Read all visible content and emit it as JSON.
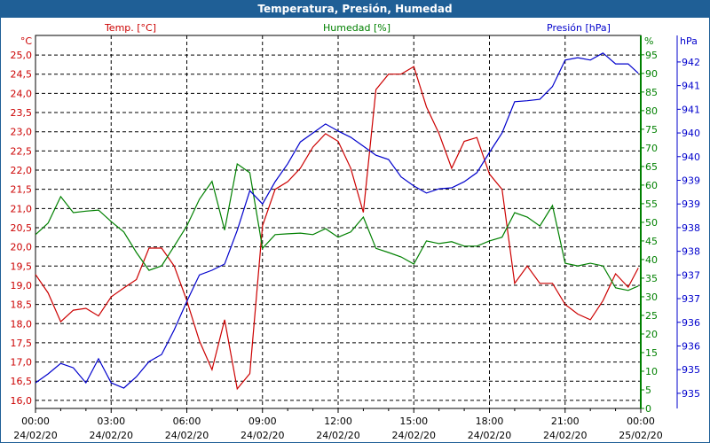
{
  "window_title": "Temperatura, Presión, Humedad",
  "colors": {
    "temp": "#cc0000",
    "humidity": "#008000",
    "pressure": "#0000cc",
    "titlebar": "#1f5f96"
  },
  "chart_data": {
    "type": "line",
    "title": "Temperatura, Presión, Humedad",
    "series_labels": {
      "temp": "Temp. [°C]",
      "humidity": "Humedad [%]",
      "pressure": "Presión [hPa]"
    },
    "axis_units": {
      "temp": "°C",
      "humidity": "%",
      "pressure": "hPa"
    },
    "x_range_hours": [
      0,
      24
    ],
    "x_ticks": [
      {
        "time": "00:00",
        "date": "24/02/20"
      },
      {
        "time": "03:00",
        "date": "24/02/20"
      },
      {
        "time": "06:00",
        "date": "24/02/20"
      },
      {
        "time": "09:00",
        "date": "24/02/20"
      },
      {
        "time": "12:00",
        "date": "24/02/20"
      },
      {
        "time": "15:00",
        "date": "24/02/20"
      },
      {
        "time": "18:00",
        "date": "24/02/20"
      },
      {
        "time": "21:00",
        "date": "24/02/20"
      },
      {
        "time": "00:00",
        "date": "25/02/20"
      }
    ],
    "temp_axis": {
      "range": [
        15.79,
        25.51
      ],
      "ticks": [
        16.0,
        16.5,
        17.0,
        17.5,
        18.0,
        18.5,
        19.0,
        19.5,
        20.0,
        20.5,
        21.0,
        21.5,
        22.0,
        22.5,
        23.0,
        23.5,
        24.0,
        24.5,
        25.0
      ],
      "tick_labels": [
        "16,0",
        "16,5",
        "17,0",
        "17,5",
        "18,0",
        "18,5",
        "19,0",
        "19,5",
        "20,0",
        "20,5",
        "21,0",
        "21,5",
        "22,0",
        "22,5",
        "23,0",
        "23,5",
        "24,0",
        "24,5",
        "25,0"
      ]
    },
    "humidity_axis": {
      "range": [
        0,
        100.2
      ],
      "ticks": [
        0,
        5,
        10,
        15,
        20,
        25,
        30,
        35,
        40,
        45,
        50,
        55,
        60,
        65,
        70,
        75,
        80,
        85,
        90,
        95
      ],
      "tick_labels": [
        "0",
        "5",
        "10",
        "15",
        "20",
        "25",
        "30",
        "35",
        "40",
        "45",
        "50",
        "55",
        "60",
        "65",
        "70",
        "75",
        "80",
        "85",
        "90",
        "95"
      ]
    },
    "pressure_axis": {
      "range": [
        934.68,
        942.56
      ],
      "ticks": [
        935.0,
        935.5,
        936.0,
        936.5,
        937.0,
        937.5,
        938.0,
        938.5,
        939.0,
        939.5,
        940.0,
        940.5,
        941.0,
        941.5,
        942.0
      ],
      "tick_labels": [
        "935",
        "935",
        "936",
        "936",
        "937",
        "937",
        "938",
        "938",
        "939",
        "939",
        "940",
        "940",
        "941",
        "941",
        "942"
      ]
    },
    "x_hours": [
      0,
      0.5,
      1,
      1.5,
      2,
      2.5,
      3,
      3.5,
      4,
      4.5,
      5,
      5.5,
      6,
      6.5,
      7,
      7.5,
      8,
      8.5,
      9,
      9.5,
      10,
      10.5,
      11,
      11.5,
      12,
      12.5,
      13,
      13.5,
      14,
      14.5,
      15,
      15.5,
      16,
      16.5,
      17,
      17.5,
      18,
      18.5,
      19,
      19.5,
      20,
      20.5,
      21,
      21.5,
      22,
      22.5,
      23,
      23.5,
      23.9
    ],
    "series": [
      {
        "name": "Temp. [°C]",
        "key": "temp",
        "values": [
          19.28,
          18.8,
          18.05,
          18.35,
          18.4,
          18.2,
          18.7,
          18.93,
          19.15,
          19.97,
          19.97,
          19.5,
          18.6,
          17.55,
          16.8,
          18.1,
          16.3,
          16.7,
          20.55,
          21.5,
          21.7,
          22.05,
          22.6,
          22.95,
          22.75,
          22.05,
          20.9,
          24.1,
          24.5,
          24.5,
          24.7,
          23.65,
          22.95,
          22.05,
          22.75,
          22.85,
          21.9,
          21.5,
          19.05,
          19.5,
          19.05,
          19.05,
          18.5,
          18.25,
          18.1,
          18.6,
          19.3,
          18.95,
          19.45
        ]
      },
      {
        "name": "Humedad [%]",
        "key": "humidity",
        "values": [
          46.7,
          49.8,
          56.9,
          52.6,
          53,
          53.3,
          50.2,
          47.4,
          41.9,
          37.1,
          38.3,
          43.6,
          49,
          56.2,
          61,
          47.9,
          65.7,
          63.3,
          43,
          46.7,
          46.9,
          47.1,
          46.7,
          48.3,
          46,
          47.4,
          51.4,
          43,
          41.9,
          40.7,
          38.8,
          45,
          44.3,
          44.8,
          43.6,
          43.6,
          45,
          46,
          52.6,
          51.4,
          49,
          54.5,
          39,
          38.3,
          39,
          38.3,
          32.4,
          31.7,
          32.9
        ]
      },
      {
        "name": "Presión [hPa]",
        "key": "pressure",
        "values": [
          935.22,
          935.41,
          935.63,
          935.54,
          935.22,
          935.73,
          935.22,
          935.11,
          935.35,
          935.67,
          935.82,
          936.34,
          936.94,
          937.5,
          937.6,
          937.73,
          938.44,
          939.28,
          939.0,
          939.47,
          939.85,
          940.31,
          940.5,
          940.69,
          940.54,
          940.41,
          940.22,
          940.03,
          939.94,
          939.57,
          939.38,
          939.23,
          939.32,
          939.34,
          939.47,
          939.66,
          940.09,
          940.5,
          941.16,
          941.18,
          941.21,
          941.48,
          942.04,
          942.09,
          942.04,
          942.19,
          941.96,
          941.96,
          941.76
        ]
      }
    ],
    "grid": true
  }
}
